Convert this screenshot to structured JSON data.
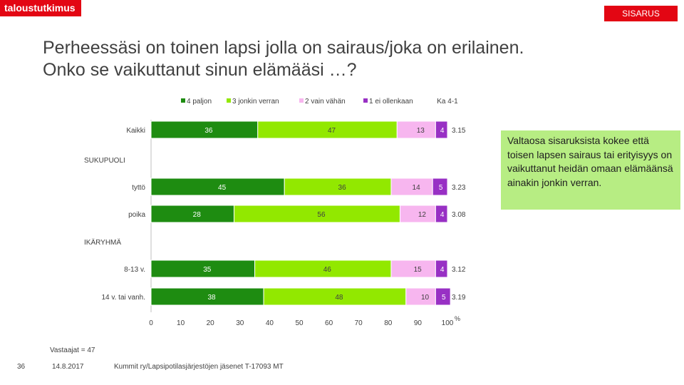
{
  "header": {
    "logo": "taloustutkimus",
    "section": "SISARUS"
  },
  "title_lines": [
    "Perheessäsi on toinen lapsi jolla on sairaus/joka on erilainen.",
    "Onko se vaikuttanut sinun elämääsi …?"
  ],
  "callout": "Valtaosa sisaruksista kokee että toisen lapsen sairaus tai erityisyys on vaikuttanut heidän omaan elämäänsä ainakin jonkin verran.",
  "footer": {
    "respondents": "Vastaajat = 47",
    "page": "36",
    "date": "14.8.2017",
    "source": "Kummit ry/Lapsipotilasjärjestöjen jäsenet T-17093 MT"
  },
  "colors": {
    "brand": "#e30613",
    "s1": "#1e8c11",
    "s2": "#92e800",
    "s3": "#f7b6ef",
    "s4": "#9830c4",
    "callout": "#b7ed83"
  },
  "chart_data": {
    "type": "bar",
    "orientation": "horizontal",
    "stacked": true,
    "series": [
      {
        "name": "4 paljon",
        "color": "#1e8c11",
        "values": [
          36,
          45,
          28,
          35,
          38
        ]
      },
      {
        "name": "3 jonkin verran",
        "color": "#92e800",
        "values": [
          47,
          36,
          56,
          46,
          48
        ]
      },
      {
        "name": "2 vain vähän",
        "color": "#f7b6ef",
        "values": [
          13,
          14,
          12,
          15,
          10
        ]
      },
      {
        "name": "1 ei ollenkaan",
        "color": "#9830c4",
        "values": [
          4,
          5,
          4,
          4,
          5
        ]
      }
    ],
    "rows": [
      {
        "type": "bar",
        "label": "Kaikki",
        "mean": "3.15"
      },
      {
        "type": "group",
        "label": "SUKUPUOLI"
      },
      {
        "type": "bar",
        "label": "tyttö",
        "mean": "3.23"
      },
      {
        "type": "bar",
        "label": "poika",
        "mean": "3.08"
      },
      {
        "type": "group",
        "label": "IKÄRYHMÄ"
      },
      {
        "type": "bar",
        "label": "8-13 v.",
        "mean": "3.12"
      },
      {
        "type": "bar",
        "label": "14 v. tai vanh.",
        "mean": "3.19"
      }
    ],
    "mean_header": "Ka 4-1",
    "x_ticks": [
      "0",
      "10",
      "20",
      "30",
      "40",
      "50",
      "60",
      "70",
      "80",
      "90",
      "100"
    ],
    "x_unit": "%",
    "xlim": [
      0,
      100
    ],
    "legend_position": "top",
    "grid": false
  }
}
